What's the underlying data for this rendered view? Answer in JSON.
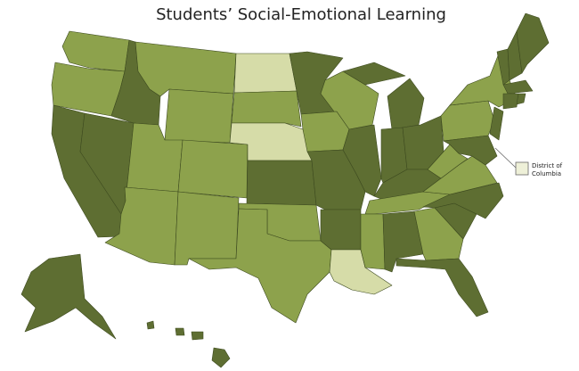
{
  "title": "Students’ Social-Emotional Learning",
  "dc_callout": {
    "lines": [
      "District of",
      "Columbia"
    ],
    "fill": "#eef0d8"
  },
  "state_fills": [
    "#8da24c",
    "#8da24c",
    "#5e6e32",
    "#5e6e32",
    "#5e6e32",
    "#8da24c",
    "#8da24c",
    "#8da24c",
    "#8da24c",
    "#8da24c",
    "#8da24c",
    "#d6dca8",
    "#8da24c",
    "#d6dca8",
    "#5e6e32",
    "#8da24c",
    "#8da24c",
    "#5e6e32",
    "#8da24c",
    "#5e6e32",
    "#5e6e32",
    "#d6dca8",
    "#8da24c",
    "#5e6e32",
    "#5e6e32",
    "#5e6e32",
    "#5e6e32",
    "#5e6e32",
    "#5e6e32",
    "#8da24c",
    "#8da24c",
    "#5e6e32",
    "#8da24c",
    "#5e6e32",
    "#5e6e32",
    "#5e6e32",
    "#8da24c",
    "#8da24c",
    "#8da24c",
    "#8da24c",
    "#5e6e32",
    "#5e6e32",
    "#5e6e32",
    "#5e6e32",
    "#5e6e32",
    "#5e6e32",
    "#5e6e32",
    "#5e6e32",
    "#5e6e32",
    "#5e6e32",
    "#5e6e32",
    "#5e6e32",
    "#5e6e32"
  ]
}
